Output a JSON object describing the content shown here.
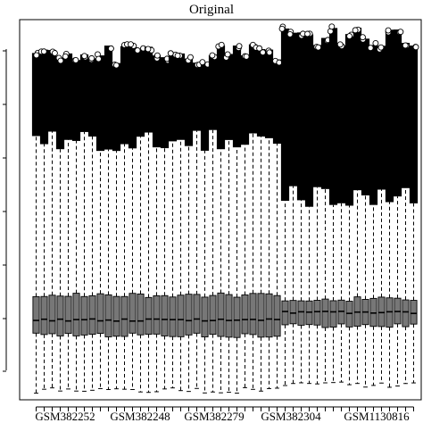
{
  "chart_data": {
    "type": "boxplot",
    "title": "Original",
    "xlabel": "",
    "ylabel": "",
    "x_tick_labels": [
      "GSM382252",
      "GSM382248",
      "GSM382279",
      "GSM382304",
      "GSM1130816"
    ],
    "y_tick_labels": [],
    "n_samples": 48,
    "groups": [
      {
        "samples": 31,
        "whisker_low": 0.5,
        "q1": 3.4,
        "median": 4.2,
        "q3": 5.5,
        "whisker_high": 13.6,
        "outlier_top": 18.4
      },
      {
        "samples": 17,
        "whisker_low": 0.8,
        "q1": 3.9,
        "median": 4.6,
        "q3": 5.3,
        "whisker_high": 10.7,
        "outlier_top": 19.3
      }
    ],
    "ylim": [
      0,
      20
    ],
    "grid": false,
    "colors": {
      "box": "#777777",
      "line": "#000000",
      "outlier": "#000000"
    }
  }
}
